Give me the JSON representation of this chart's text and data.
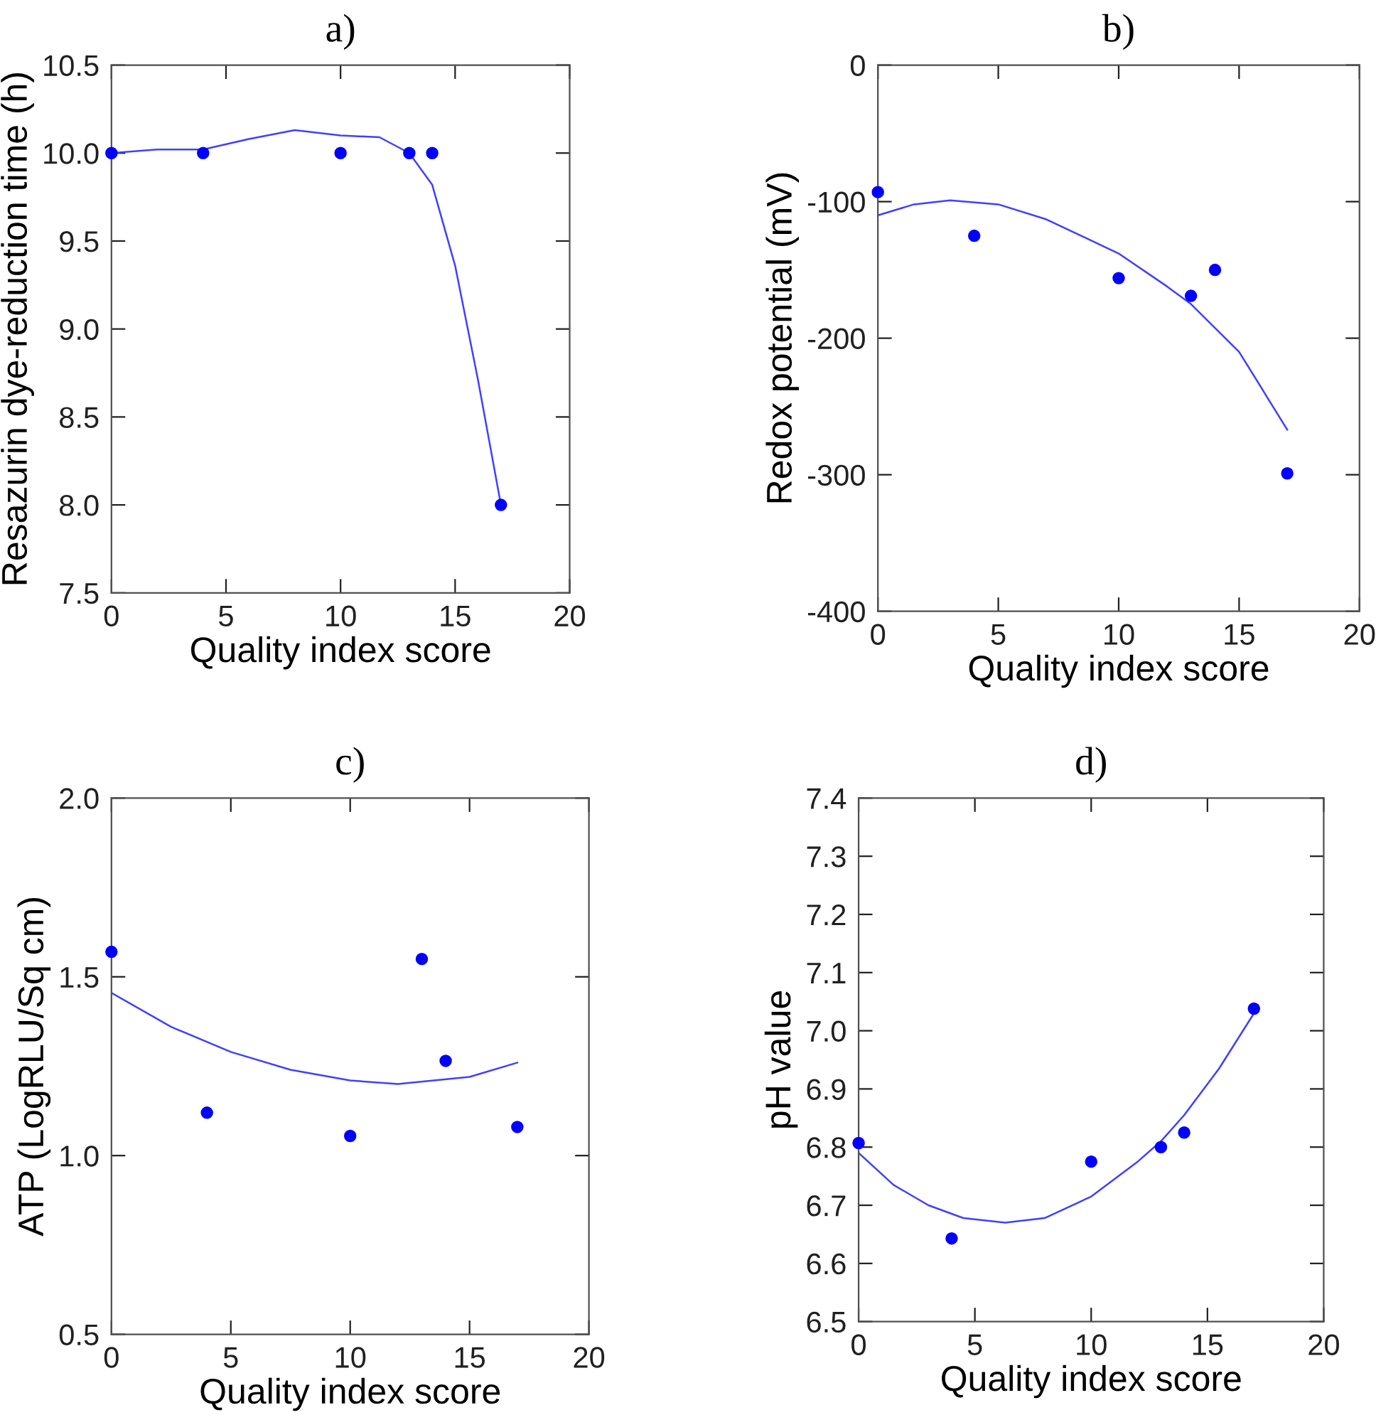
{
  "chart_data": [
    {
      "type": "scatter",
      "title": "a)",
      "xlabel": "Quality index score",
      "ylabel": "Resazurin dye-reduction time (h)",
      "xlim": [
        0,
        20
      ],
      "xticks": [
        0,
        5,
        10,
        15,
        20
      ],
      "ylim": [
        7.5,
        10.5
      ],
      "yticks": [
        7.5,
        {
          "value": 8,
          "label": "8.0"
        },
        8.5,
        {
          "value": 9,
          "label": "9.0"
        },
        9.5,
        {
          "value": 10,
          "label": "10.0"
        },
        10.5
      ],
      "grid": false,
      "legend": false,
      "series": [
        {
          "color": "#0000ff",
          "marker": "circle",
          "x": [
            0,
            4,
            10,
            13,
            14,
            17
          ],
          "values": [
            10.0,
            10.0,
            10.0,
            10.0,
            10.0,
            8.0
          ]
        },
        {
          "type": "line",
          "color": "#4040ff",
          "marker": "none",
          "line_style": "solid",
          "x": [
            0,
            2,
            4,
            6,
            8,
            10,
            11.7,
            13,
            14,
            15,
            16,
            17
          ],
          "values": [
            10.0,
            10.02,
            10.02,
            10.08,
            10.13,
            10.1,
            10.09,
            10.0,
            9.82,
            9.36,
            8.71,
            8.0
          ]
        }
      ]
    },
    {
      "type": "scatter",
      "title": "b)",
      "xlabel": "Quality index score",
      "ylabel": "Redox potential (mV)",
      "xlim": [
        0,
        20
      ],
      "xticks": [
        0,
        5,
        10,
        15,
        20
      ],
      "ylim": [
        -400,
        0
      ],
      "yticks": [
        -400,
        -300,
        -200,
        -100,
        0
      ],
      "grid": false,
      "legend": false,
      "series": [
        {
          "color": "#0000ff",
          "marker": "circle",
          "x": [
            0,
            4,
            10,
            13,
            14,
            17
          ],
          "values": [
            -93,
            -125,
            -156,
            -169,
            -150,
            -299
          ]
        },
        {
          "type": "line",
          "color": "#4040ff",
          "marker": "none",
          "line_style": "solid",
          "x": [
            0,
            1.5,
            3,
            5,
            7,
            10,
            12,
            13,
            15,
            17
          ],
          "values": [
            -110,
            -102,
            -99,
            -102,
            -113,
            -138,
            -162,
            -175,
            -210,
            -267
          ]
        }
      ]
    },
    {
      "type": "scatter",
      "title": "c)",
      "xlabel": "Quality index score",
      "ylabel": "ATP (LogRLU/Sq cm)",
      "xlim": [
        0,
        20
      ],
      "xticks": [
        0,
        5,
        10,
        15,
        20
      ],
      "ylim": [
        0.5,
        2.0
      ],
      "yticks": [
        0.5,
        {
          "value": 1,
          "label": "1.0"
        },
        1.5,
        {
          "value": 2,
          "label": "2.0"
        }
      ],
      "grid": false,
      "legend": false,
      "series": [
        {
          "color": "#0000ff",
          "marker": "circle",
          "x": [
            0,
            4,
            10,
            13,
            14,
            17
          ],
          "values": [
            1.57,
            1.12,
            1.055,
            1.55,
            1.265,
            1.08
          ]
        },
        {
          "type": "line",
          "color": "#4040ff",
          "marker": "none",
          "line_style": "solid",
          "x": [
            0,
            2.5,
            5,
            7.5,
            10,
            12,
            15,
            17
          ],
          "values": [
            1.455,
            1.36,
            1.29,
            1.24,
            1.21,
            1.2,
            1.22,
            1.26
          ]
        }
      ]
    },
    {
      "type": "scatter",
      "title": "d)",
      "xlabel": "Quality index score",
      "ylabel": "pH value",
      "xlim": [
        0,
        20
      ],
      "xticks": [
        0,
        5,
        10,
        15,
        20
      ],
      "ylim": [
        6.5,
        7.4
      ],
      "yticks": [
        6.5,
        6.6,
        6.7,
        6.8,
        6.9,
        {
          "value": 7,
          "label": "7.0"
        },
        7.1,
        7.2,
        7.3,
        7.4
      ],
      "grid": false,
      "legend": false,
      "series": [
        {
          "color": "#0000ff",
          "marker": "circle",
          "x": [
            0,
            4,
            10,
            13,
            14,
            17
          ],
          "values": [
            6.807,
            6.643,
            6.775,
            6.8,
            6.825,
            7.038
          ]
        },
        {
          "type": "line",
          "color": "#4040ff",
          "marker": "none",
          "line_style": "solid",
          "x": [
            0,
            1.5,
            3,
            4.5,
            6.3,
            8,
            10,
            12,
            13,
            14,
            15.5,
            17
          ],
          "values": [
            6.79,
            6.735,
            6.7,
            6.678,
            6.67,
            6.678,
            6.715,
            6.775,
            6.81,
            6.855,
            6.935,
            7.03
          ]
        }
      ]
    }
  ]
}
